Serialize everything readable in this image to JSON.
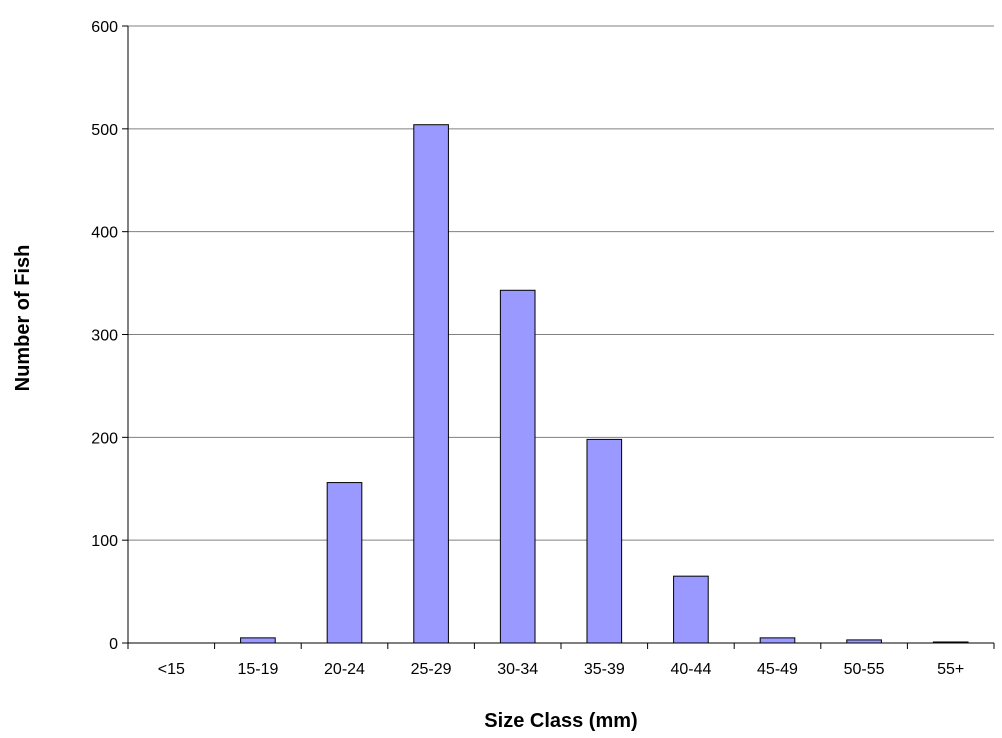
{
  "chart_data": {
    "type": "bar",
    "title": "",
    "xlabel": "Size Class (mm)",
    "ylabel": "Number of Fish",
    "categories": [
      "<15",
      "15-19",
      "20-24",
      "25-29",
      "30-34",
      "35-39",
      "40-44",
      "45-49",
      "50-55",
      "55+"
    ],
    "series": [
      {
        "values": [
          0,
          5,
          156,
          504,
          343,
          198,
          65,
          5,
          3,
          1
        ]
      }
    ],
    "ylim": [
      0,
      600
    ],
    "yticks": [
      0,
      100,
      200,
      300,
      400,
      500,
      600
    ],
    "grid": true,
    "legend": "none",
    "colors": {
      "bar_fill": "#9999ff",
      "bar_stroke": "#000000",
      "gridline": "#808080",
      "axis": "#000000"
    }
  }
}
